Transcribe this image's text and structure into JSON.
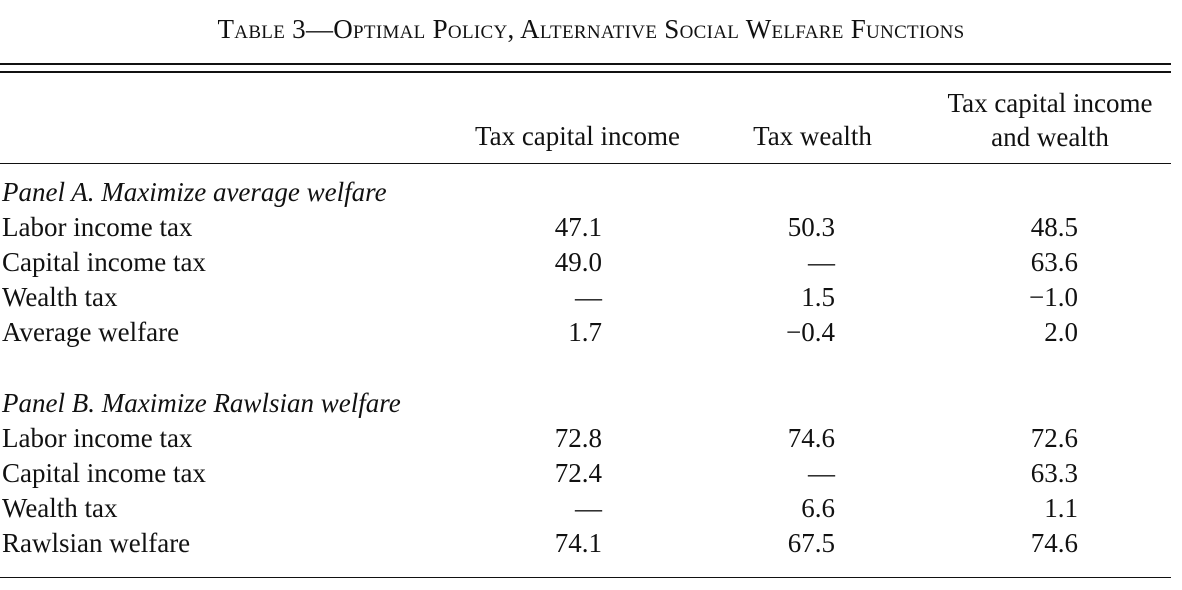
{
  "table": {
    "title": "Table 3—Optimal Policy, Alternative Social Welfare Functions",
    "columns": [
      {
        "line1": "",
        "line2": "Tax capital income"
      },
      {
        "line1": "",
        "line2": "Tax wealth"
      },
      {
        "line1": "Tax capital income",
        "line2": "and wealth"
      }
    ],
    "panels": [
      {
        "title": "Panel A. Maximize average welfare",
        "rows": [
          {
            "label": "Labor income tax",
            "values": [
              "47.1",
              "50.3",
              "48.5"
            ]
          },
          {
            "label": "Capital income tax",
            "values": [
              "49.0",
              "—",
              "63.6"
            ]
          },
          {
            "label": "Wealth tax",
            "values": [
              "—",
              "1.5",
              "−1.0"
            ]
          },
          {
            "label": "Average welfare",
            "values": [
              "1.7",
              "−0.4",
              "2.0"
            ]
          }
        ]
      },
      {
        "title": "Panel B. Maximize Rawlsian welfare",
        "rows": [
          {
            "label": "Labor income tax",
            "values": [
              "72.8",
              "74.6",
              "72.6"
            ]
          },
          {
            "label": "Capital income tax",
            "values": [
              "72.4",
              "—",
              "63.3"
            ]
          },
          {
            "label": "Wealth tax",
            "values": [
              "—",
              "6.6",
              "1.1"
            ]
          },
          {
            "label": "Rawlsian welfare",
            "values": [
              "74.1",
              "67.5",
              "74.6"
            ]
          }
        ]
      }
    ]
  }
}
